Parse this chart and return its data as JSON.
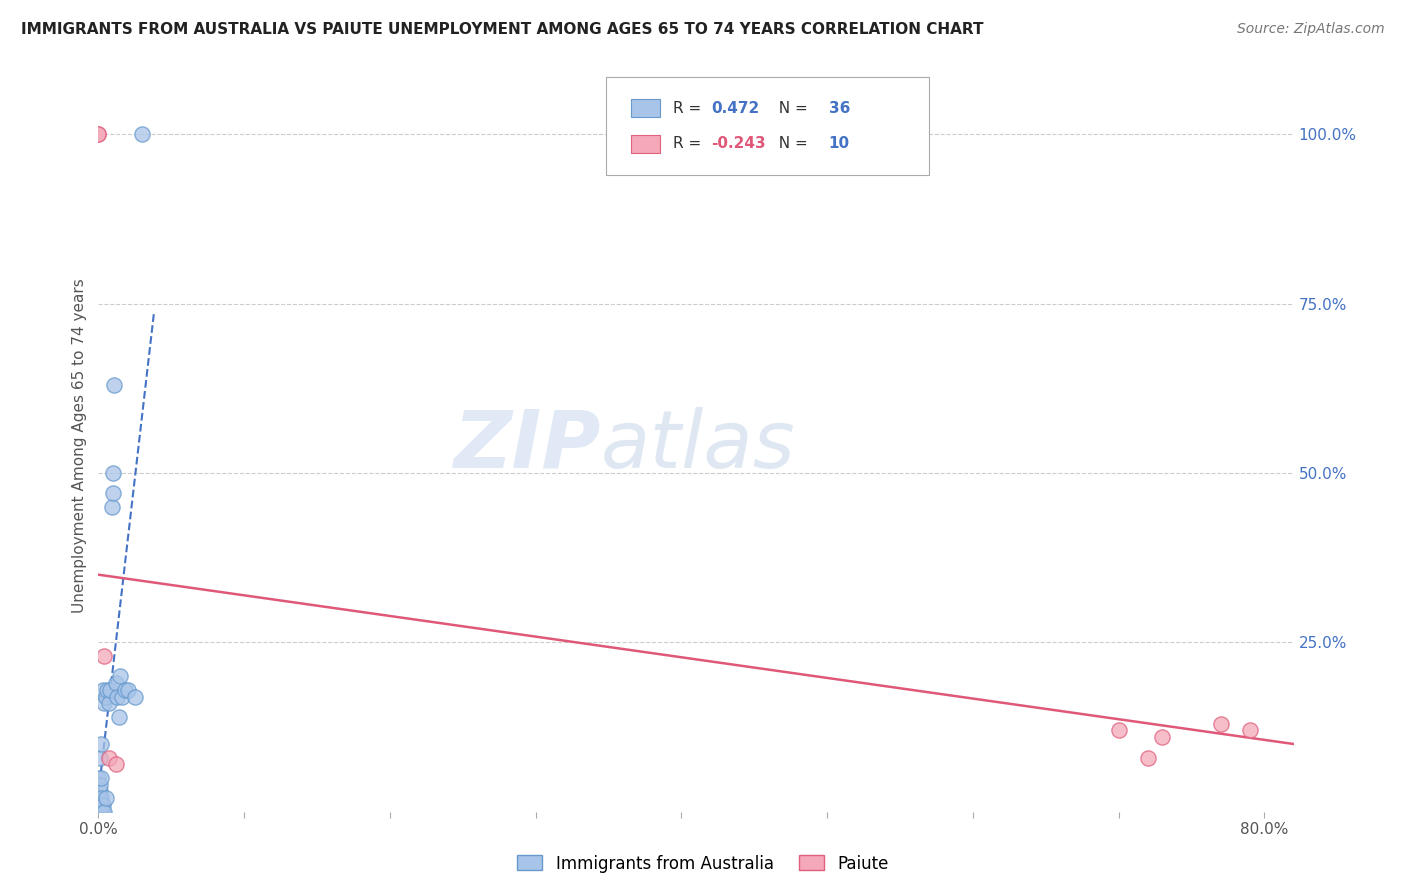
{
  "title": "IMMIGRANTS FROM AUSTRALIA VS PAIUTE UNEMPLOYMENT AMONG AGES 65 TO 74 YEARS CORRELATION CHART",
  "source": "Source: ZipAtlas.com",
  "ylabel": "Unemployment Among Ages 65 to 74 years",
  "watermark_zip": "ZIP",
  "watermark_atlas": "atlas",
  "blue_R": 0.472,
  "blue_N": 36,
  "pink_R": -0.243,
  "pink_N": 10,
  "blue_color": "#a8c4e8",
  "blue_edge_color": "#6699cc",
  "pink_color": "#f4a8b8",
  "pink_edge_color": "#e06080",
  "trend_blue_color": "#4472c4",
  "trend_pink_color": "#e05878",
  "right_axis_color": "#4472c4",
  "title_color": "#222222",
  "legend_R_blue_color": "#4472c4",
  "legend_R_pink_color": "#e05878",
  "legend_N_color": "#4472c4",
  "blue_scatter_x": [
    0.0,
    0.0,
    0.001,
    0.001,
    0.001,
    0.001,
    0.001,
    0.001,
    0.002,
    0.002,
    0.002,
    0.002,
    0.002,
    0.003,
    0.003,
    0.003,
    0.004,
    0.004,
    0.005,
    0.005,
    0.006,
    0.007,
    0.008,
    0.009,
    0.01,
    0.01,
    0.011,
    0.012,
    0.013,
    0.014,
    0.015,
    0.016,
    0.018,
    0.02,
    0.025,
    0.03
  ],
  "blue_scatter_y": [
    0.02,
    0.05,
    0.0,
    0.01,
    0.02,
    0.03,
    0.04,
    0.08,
    0.0,
    0.01,
    0.02,
    0.05,
    0.1,
    0.0,
    0.01,
    0.18,
    0.0,
    0.16,
    0.02,
    0.17,
    0.18,
    0.16,
    0.18,
    0.45,
    0.47,
    0.5,
    0.63,
    0.19,
    0.17,
    0.14,
    0.2,
    0.17,
    0.18,
    0.18,
    0.17,
    1.0
  ],
  "pink_scatter_x": [
    0.0,
    0.0,
    0.004,
    0.007,
    0.012,
    0.7,
    0.72,
    0.73,
    0.77,
    0.79
  ],
  "pink_scatter_y": [
    1.0,
    1.0,
    0.23,
    0.08,
    0.07,
    0.12,
    0.08,
    0.11,
    0.13,
    0.12
  ],
  "xlim": [
    0.0,
    0.82
  ],
  "ylim": [
    0.0,
    1.08
  ],
  "right_ytick_vals": [
    0.0,
    0.25,
    0.5,
    0.75,
    1.0
  ],
  "right_yticklabels": [
    "",
    "25.0%",
    "50.0%",
    "75.0%",
    "100.0%"
  ],
  "legend_label_blue": "Immigrants from Australia",
  "legend_label_pink": "Paiute",
  "marker_size": 120,
  "blue_trend_x0": 0.0,
  "blue_trend_x1": 0.05,
  "pink_trend_x0": 0.0,
  "pink_trend_x1": 0.82,
  "pink_trend_y0": 0.35,
  "pink_trend_y1": 0.1
}
